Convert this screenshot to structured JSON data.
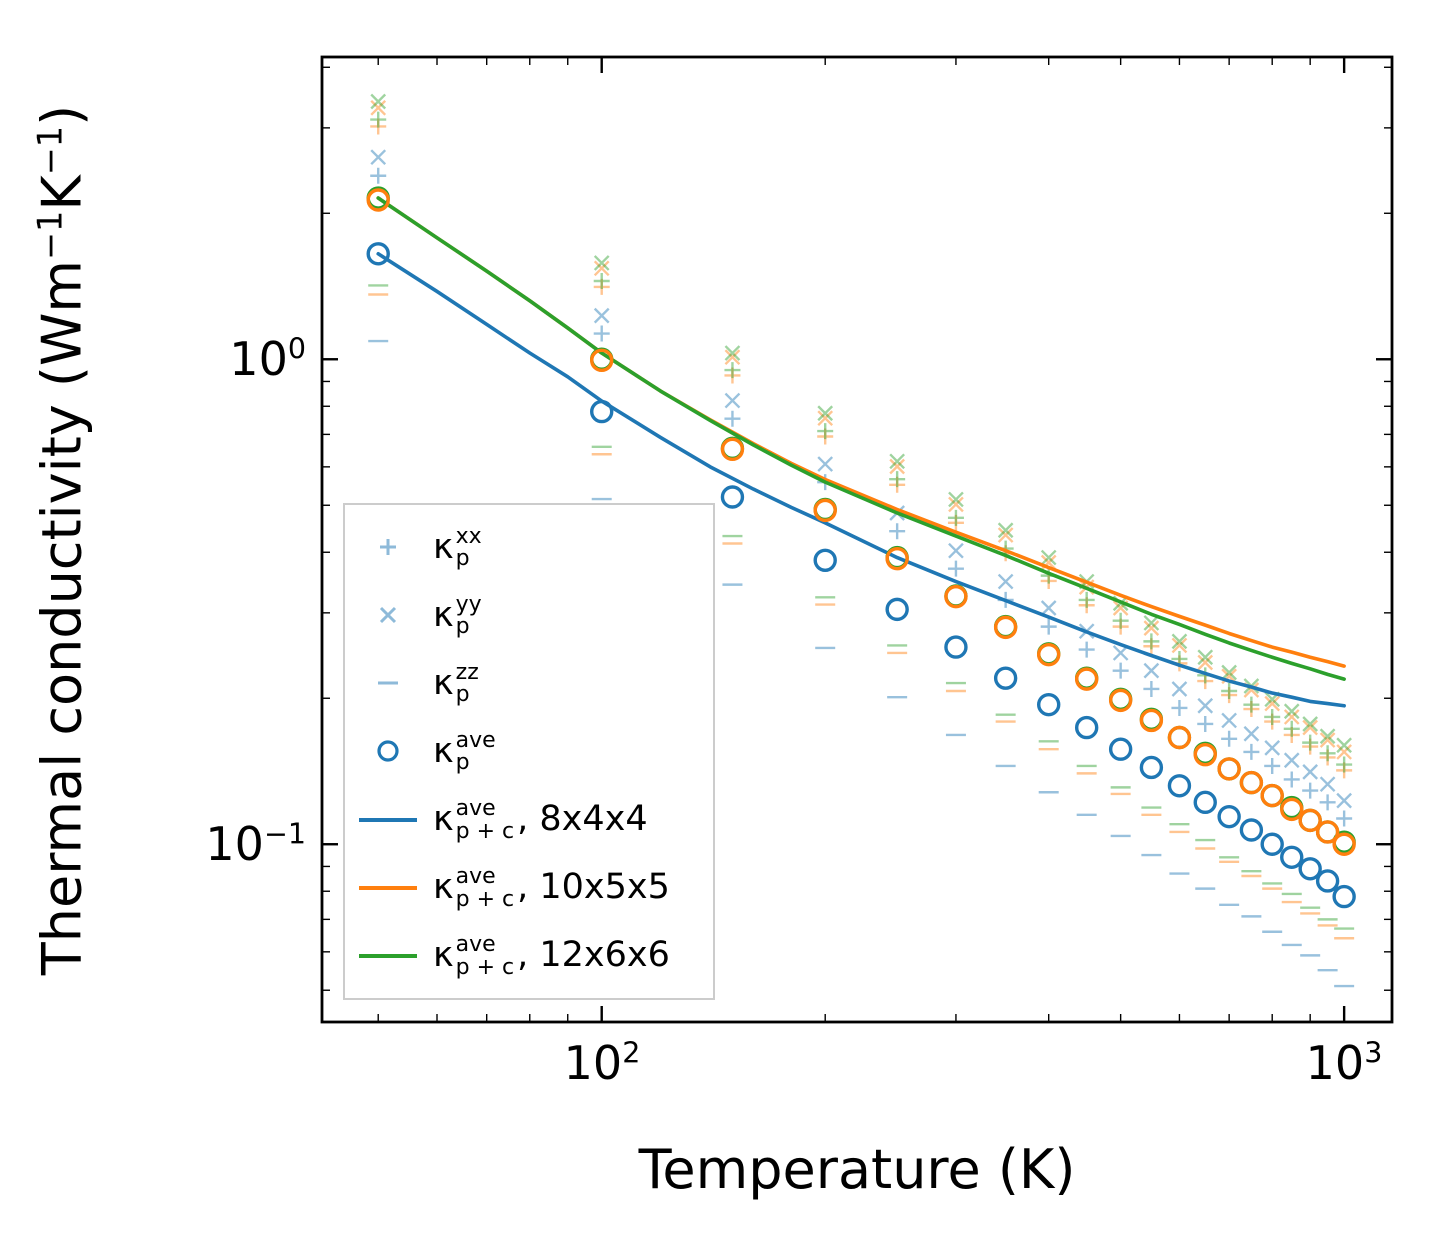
{
  "colors": {
    "blue": "#1f77b4",
    "orange": "#ff7f0e",
    "green": "#2ca02c",
    "axis": "#000000",
    "legend_border": "#cccccc"
  },
  "chart_data": {
    "type": "line",
    "title": "",
    "xlabel": "Temperature (K)",
    "ylabel": "Thermal conductivity (Wm⁻¹K⁻¹)",
    "ylabel_parts": {
      "a": "Thermal conductivity (Wm",
      "e1": "−1",
      "b": "K",
      "e2": "−1",
      "c": ")"
    },
    "xscale": "log",
    "yscale": "log",
    "grid": false,
    "legend_position": "lower left inside",
    "xlim": [
      42,
      1160
    ],
    "ylim": [
      0.043,
      4.2
    ],
    "xticks": [
      {
        "base": "10",
        "exp": "2",
        "value": 100
      },
      {
        "base": "10",
        "exp": "3",
        "value": 1000
      }
    ],
    "yticks": [
      {
        "base": "10",
        "exp": "0",
        "value": 1
      },
      {
        "base": "10",
        "exp": "−1",
        "value": 0.1
      }
    ],
    "scatter_x": [
      50,
      100,
      150,
      200,
      250,
      300,
      350,
      400,
      450,
      500,
      550,
      600,
      650,
      700,
      750,
      800,
      850,
      900,
      950,
      1000
    ],
    "scatter_series": [
      {
        "name": "kappa-p-xx-8x4x4",
        "marker": "plus",
        "color": "#1f77b4",
        "alpha": 0.45,
        "values": [
          2.39,
          1.13,
          0.754,
          0.558,
          0.442,
          0.37,
          0.319,
          0.281,
          0.252,
          0.228,
          0.209,
          0.191,
          0.177,
          0.165,
          0.155,
          0.145,
          0.136,
          0.129,
          0.122,
          0.113
        ]
      },
      {
        "name": "kappa-p-yy-8x4x4",
        "marker": "x",
        "color": "#1f77b4",
        "alpha": 0.45,
        "values": [
          2.61,
          1.23,
          0.822,
          0.608,
          0.482,
          0.403,
          0.348,
          0.307,
          0.275,
          0.248,
          0.228,
          0.209,
          0.193,
          0.18,
          0.169,
          0.158,
          0.149,
          0.141,
          0.133,
          0.123
        ]
      },
      {
        "name": "kappa-p-zz-8x4x4",
        "marker": "minus",
        "color": "#1f77b4",
        "alpha": 0.45,
        "values": [
          1.09,
          0.515,
          0.343,
          0.254,
          0.201,
          0.168,
          0.145,
          0.128,
          0.115,
          0.104,
          0.095,
          0.087,
          0.081,
          0.075,
          0.071,
          0.066,
          0.062,
          0.059,
          0.055,
          0.051
        ]
      },
      {
        "name": "kappa-p-xx-10x5x5",
        "marker": "plus",
        "color": "#ff7f0e",
        "alpha": 0.45,
        "values": [
          3.02,
          1.41,
          0.926,
          0.693,
          0.551,
          0.46,
          0.398,
          0.349,
          0.311,
          0.281,
          0.256,
          0.236,
          0.217,
          0.203,
          0.19,
          0.179,
          0.168,
          0.159,
          0.151,
          0.142
        ]
      },
      {
        "name": "kappa-p-yy-10x5x5",
        "marker": "x",
        "color": "#ff7f0e",
        "alpha": 0.45,
        "values": [
          3.3,
          1.54,
          1.01,
          0.756,
          0.601,
          0.502,
          0.434,
          0.381,
          0.339,
          0.307,
          0.279,
          0.257,
          0.237,
          0.222,
          0.208,
          0.195,
          0.183,
          0.174,
          0.164,
          0.155
        ]
      },
      {
        "name": "kappa-p-zz-10x5x5",
        "marker": "minus",
        "color": "#ff7f0e",
        "alpha": 0.45,
        "values": [
          1.36,
          0.637,
          0.417,
          0.312,
          0.248,
          0.207,
          0.179,
          0.157,
          0.14,
          0.127,
          0.115,
          0.106,
          0.098,
          0.092,
          0.086,
          0.081,
          0.076,
          0.072,
          0.068,
          0.064
        ]
      },
      {
        "name": "kappa-p-xx-12x6x6",
        "marker": "plus",
        "color": "#2ca02c",
        "alpha": 0.45,
        "values": [
          3.12,
          1.45,
          0.95,
          0.711,
          0.566,
          0.471,
          0.407,
          0.358,
          0.319,
          0.289,
          0.262,
          0.241,
          0.223,
          0.207,
          0.194,
          0.183,
          0.173,
          0.162,
          0.154,
          0.146
        ]
      },
      {
        "name": "kappa-p-yy-12x6x6",
        "marker": "x",
        "color": "#2ca02c",
        "alpha": 0.45,
        "values": [
          3.4,
          1.58,
          1.03,
          0.774,
          0.616,
          0.514,
          0.444,
          0.39,
          0.348,
          0.314,
          0.286,
          0.262,
          0.243,
          0.226,
          0.212,
          0.199,
          0.188,
          0.177,
          0.167,
          0.16
        ]
      },
      {
        "name": "kappa-p-zz-12x6x6",
        "marker": "minus",
        "color": "#2ca02c",
        "alpha": 0.45,
        "values": [
          1.42,
          0.66,
          0.432,
          0.323,
          0.257,
          0.215,
          0.185,
          0.163,
          0.145,
          0.131,
          0.119,
          0.11,
          0.102,
          0.094,
          0.088,
          0.083,
          0.079,
          0.074,
          0.07,
          0.067
        ]
      },
      {
        "name": "kappa-p-ave-12x6x6",
        "marker": "circle",
        "color": "#2ca02c",
        "alpha": 1,
        "values": [
          2.15,
          1.0,
          0.655,
          0.49,
          0.39,
          0.325,
          0.281,
          0.247,
          0.22,
          0.199,
          0.181,
          0.166,
          0.154,
          0.143,
          0.134,
          0.126,
          0.119,
          0.112,
          0.106,
          0.101
        ]
      },
      {
        "name": "kappa-p-ave-10x5x5",
        "marker": "circle",
        "color": "#ff7f0e",
        "alpha": 1,
        "values": [
          2.13,
          0.995,
          0.652,
          0.488,
          0.388,
          0.324,
          0.28,
          0.246,
          0.219,
          0.198,
          0.18,
          0.166,
          0.153,
          0.143,
          0.134,
          0.126,
          0.118,
          0.112,
          0.106,
          0.1
        ]
      },
      {
        "name": "kappa-p-ave-8x4x4",
        "marker": "circle",
        "color": "#1f77b4",
        "alpha": 1,
        "values": [
          1.65,
          0.78,
          0.52,
          0.385,
          0.305,
          0.255,
          0.22,
          0.194,
          0.174,
          0.157,
          0.144,
          0.132,
          0.122,
          0.114,
          0.107,
          0.1,
          0.094,
          0.089,
          0.084,
          0.078
        ]
      }
    ],
    "line_x": [
      50,
      60,
      70,
      80,
      90,
      100,
      120,
      140,
      160,
      180,
      200,
      250,
      300,
      350,
      400,
      450,
      500,
      550,
      600,
      650,
      700,
      750,
      800,
      850,
      900,
      950,
      1000
    ],
    "line_series": [
      {
        "name": "kappa-p+c-ave-10x5x5",
        "color": "#ff7f0e",
        "values": [
          2.15,
          1.78,
          1.52,
          1.32,
          1.16,
          1.03,
          0.86,
          0.75,
          0.67,
          0.61,
          0.565,
          0.49,
          0.44,
          0.403,
          0.372,
          0.347,
          0.326,
          0.309,
          0.295,
          0.283,
          0.272,
          0.263,
          0.255,
          0.249,
          0.243,
          0.238,
          0.233
        ]
      },
      {
        "name": "kappa-p+c-ave-12x6x6",
        "color": "#2ca02c",
        "values": [
          2.15,
          1.78,
          1.52,
          1.32,
          1.16,
          1.03,
          0.86,
          0.748,
          0.666,
          0.605,
          0.558,
          0.482,
          0.432,
          0.394,
          0.362,
          0.337,
          0.316,
          0.298,
          0.284,
          0.271,
          0.26,
          0.251,
          0.243,
          0.236,
          0.23,
          0.224,
          0.219
        ]
      },
      {
        "name": "kappa-p+c-ave-8x4x4",
        "color": "#1f77b4",
        "values": [
          1.65,
          1.38,
          1.18,
          1.03,
          0.92,
          0.82,
          0.69,
          0.6,
          0.54,
          0.495,
          0.46,
          0.39,
          0.348,
          0.318,
          0.294,
          0.274,
          0.258,
          0.245,
          0.234,
          0.225,
          0.217,
          0.211,
          0.205,
          0.201,
          0.197,
          0.195,
          0.193
        ]
      }
    ]
  },
  "legend": {
    "items": [
      {
        "marker": "plus",
        "kappa": "κ",
        "sup": "xx",
        "sub": "p",
        "suffix": ""
      },
      {
        "marker": "x",
        "kappa": "κ",
        "sup": "yy",
        "sub": "p",
        "suffix": ""
      },
      {
        "marker": "minus",
        "kappa": "κ",
        "sup": "zz",
        "sub": "p",
        "suffix": ""
      },
      {
        "marker": "circle",
        "kappa": "κ",
        "sup": "ave",
        "sub": "p",
        "suffix": ""
      },
      {
        "marker": "line-blue",
        "kappa": "κ",
        "sup": "ave",
        "sub": "p + c",
        "suffix": ", 8x4x4"
      },
      {
        "marker": "line-orange",
        "kappa": "κ",
        "sup": "ave",
        "sub": "p + c",
        "suffix": ", 10x5x5"
      },
      {
        "marker": "line-green",
        "kappa": "κ",
        "sup": "ave",
        "sub": "p + c",
        "suffix": ", 12x6x6"
      }
    ]
  }
}
